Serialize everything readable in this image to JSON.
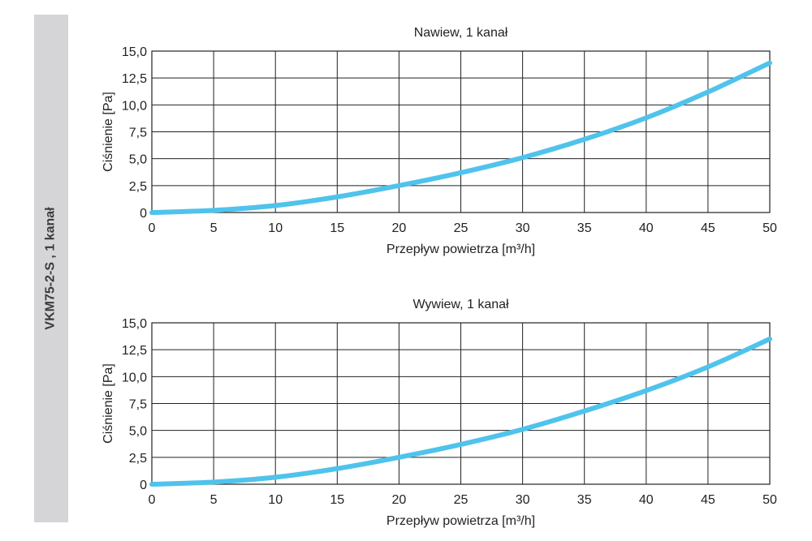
{
  "side_label": "VKM75-2-S , 1 kanał",
  "colors": {
    "curve": "#4fc3ec",
    "grid": "#222222",
    "sidebar": "#d5d5d7"
  },
  "chart_data": [
    {
      "type": "line",
      "title": "Nawiew, 1 kanał",
      "xlabel": "Przepływ powietrza [m³/h]",
      "ylabel": "Ciśnienie [Pa]",
      "xlim": [
        0,
        50
      ],
      "ylim": [
        0,
        15
      ],
      "x_ticks": [
        "0",
        "5",
        "10",
        "15",
        "20",
        "25",
        "30",
        "35",
        "40",
        "45",
        "50"
      ],
      "y_ticks": [
        "0",
        "2,5",
        "5,0",
        "7,5",
        "10,0",
        "12,5",
        "15,0"
      ],
      "grid": true,
      "series": [
        {
          "x": [
            0,
            5,
            10,
            15,
            20,
            25,
            30,
            35,
            40,
            45,
            50
          ],
          "y": [
            0.0,
            0.2,
            0.65,
            1.45,
            2.5,
            3.7,
            5.1,
            6.8,
            8.8,
            11.2,
            13.9
          ]
        }
      ]
    },
    {
      "type": "line",
      "title": "Wywiew, 1 kanał",
      "xlabel": "Przepływ powietrza [m³/h]",
      "ylabel": "Ciśnienie [Pa]",
      "xlim": [
        0,
        50
      ],
      "ylim": [
        0,
        15
      ],
      "x_ticks": [
        "0",
        "5",
        "10",
        "15",
        "20",
        "25",
        "30",
        "35",
        "40",
        "45",
        "50"
      ],
      "y_ticks": [
        "0",
        "2,5",
        "5,0",
        "7,5",
        "10,0",
        "12,5",
        "15,0"
      ],
      "grid": true,
      "series": [
        {
          "x": [
            0,
            5,
            10,
            15,
            20,
            25,
            30,
            35,
            40,
            45,
            50
          ],
          "y": [
            0.0,
            0.2,
            0.65,
            1.45,
            2.5,
            3.7,
            5.1,
            6.8,
            8.7,
            10.9,
            13.5
          ]
        }
      ]
    }
  ]
}
